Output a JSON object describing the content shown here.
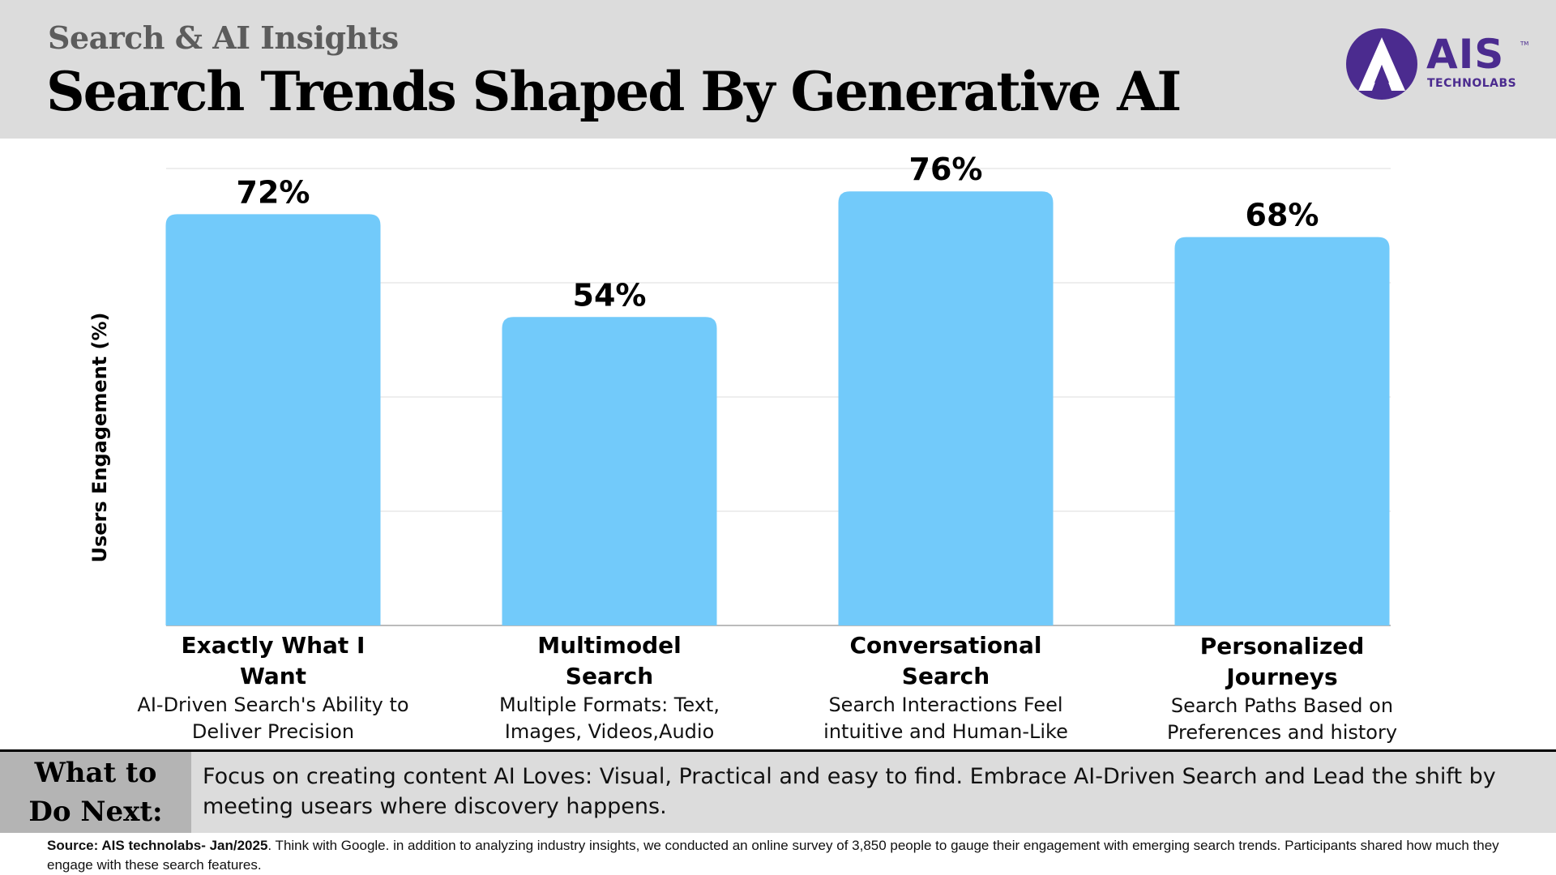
{
  "header": {
    "subtitle": "Search & AI Insights",
    "title": "Search Trends Shaped By Generative AI"
  },
  "logo": {
    "text": "AIS",
    "sub": "TECHNOLABS",
    "tm": "TM"
  },
  "colors": {
    "header_bg": "#dcdcdc",
    "bar": "#72cafa",
    "grid": "#dddddd",
    "logo": "#4b2b8f",
    "next_label_bg": "#b4b4b4"
  },
  "chart_data": {
    "type": "bar",
    "ylabel": "Users Engagement (%)",
    "ylim": [
      0,
      80
    ],
    "grid": true,
    "categories": [
      {
        "title": "Exactly What I Want",
        "title_lines": [
          "Exactly What I",
          "Want"
        ],
        "desc_lines": [
          "AI-Driven Search's Ability to",
          "Deliver Precision"
        ]
      },
      {
        "title": "Multimodel Search",
        "title_lines": [
          "Multimodel",
          "Search"
        ],
        "desc_lines": [
          "Multiple Formats: Text,",
          "Images, Videos,Audio"
        ]
      },
      {
        "title": "Conversational Search",
        "title_lines": [
          "Conversational",
          "Search"
        ],
        "desc_lines": [
          "Search Interactions Feel",
          "intuitive and Human-Like"
        ]
      },
      {
        "title": "Personalized Journeys",
        "title_lines": [
          "Personalized",
          "Journeys"
        ],
        "desc_lines": [
          "Search Paths Based on",
          "Preferences and history"
        ]
      }
    ],
    "values": [
      72,
      54,
      76,
      68
    ],
    "value_labels": [
      "72%",
      "54%",
      "76%",
      "68%"
    ]
  },
  "next": {
    "label_line1": "What to",
    "label_line2": "Do Next:",
    "text": "Focus on creating content AI Loves: Visual, Practical and easy to find. Embrace AI-Driven Search and Lead the shift by meeting usears where discovery happens."
  },
  "source": {
    "bold": "Source: AIS technolabs- Jan/2025",
    "text": ". Think with Google. in addition to analyzing industry insights, we conducted an online survey of 3,850 people to gauge their engagement with emerging search trends. Participants shared how much they engage with these search features."
  }
}
